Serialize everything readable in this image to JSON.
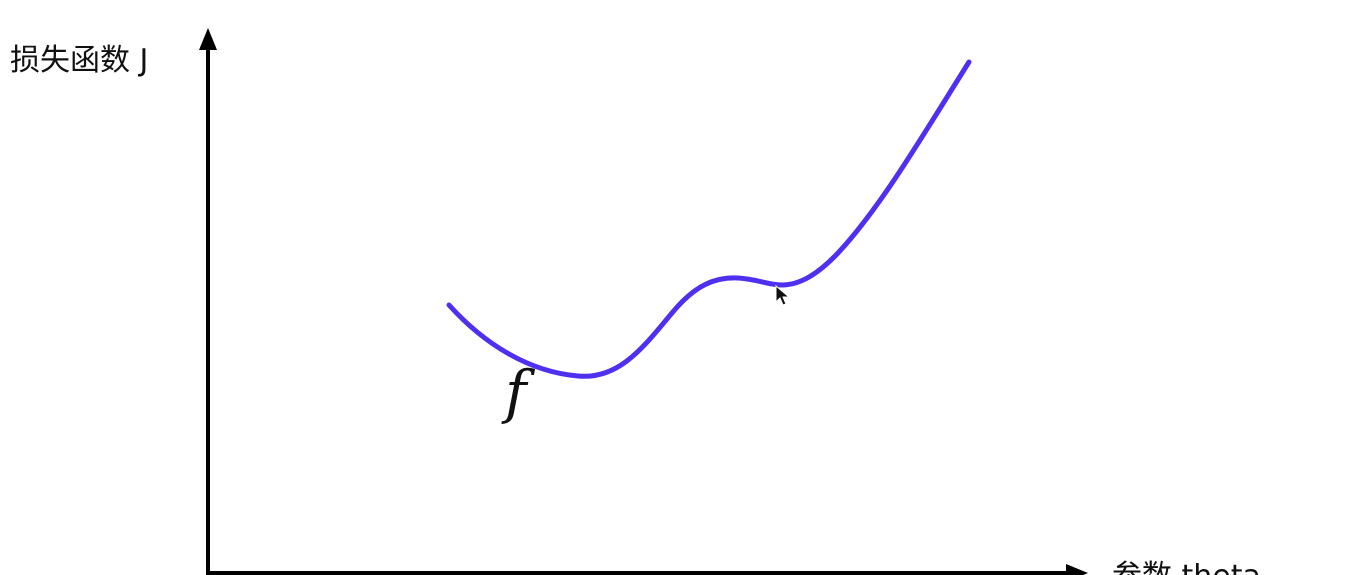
{
  "y_axis": {
    "label": "损失函数 J"
  },
  "x_axis": {
    "label": "参数 theta"
  },
  "curve": {
    "label": "f",
    "color": "#4f2ff0"
  }
}
